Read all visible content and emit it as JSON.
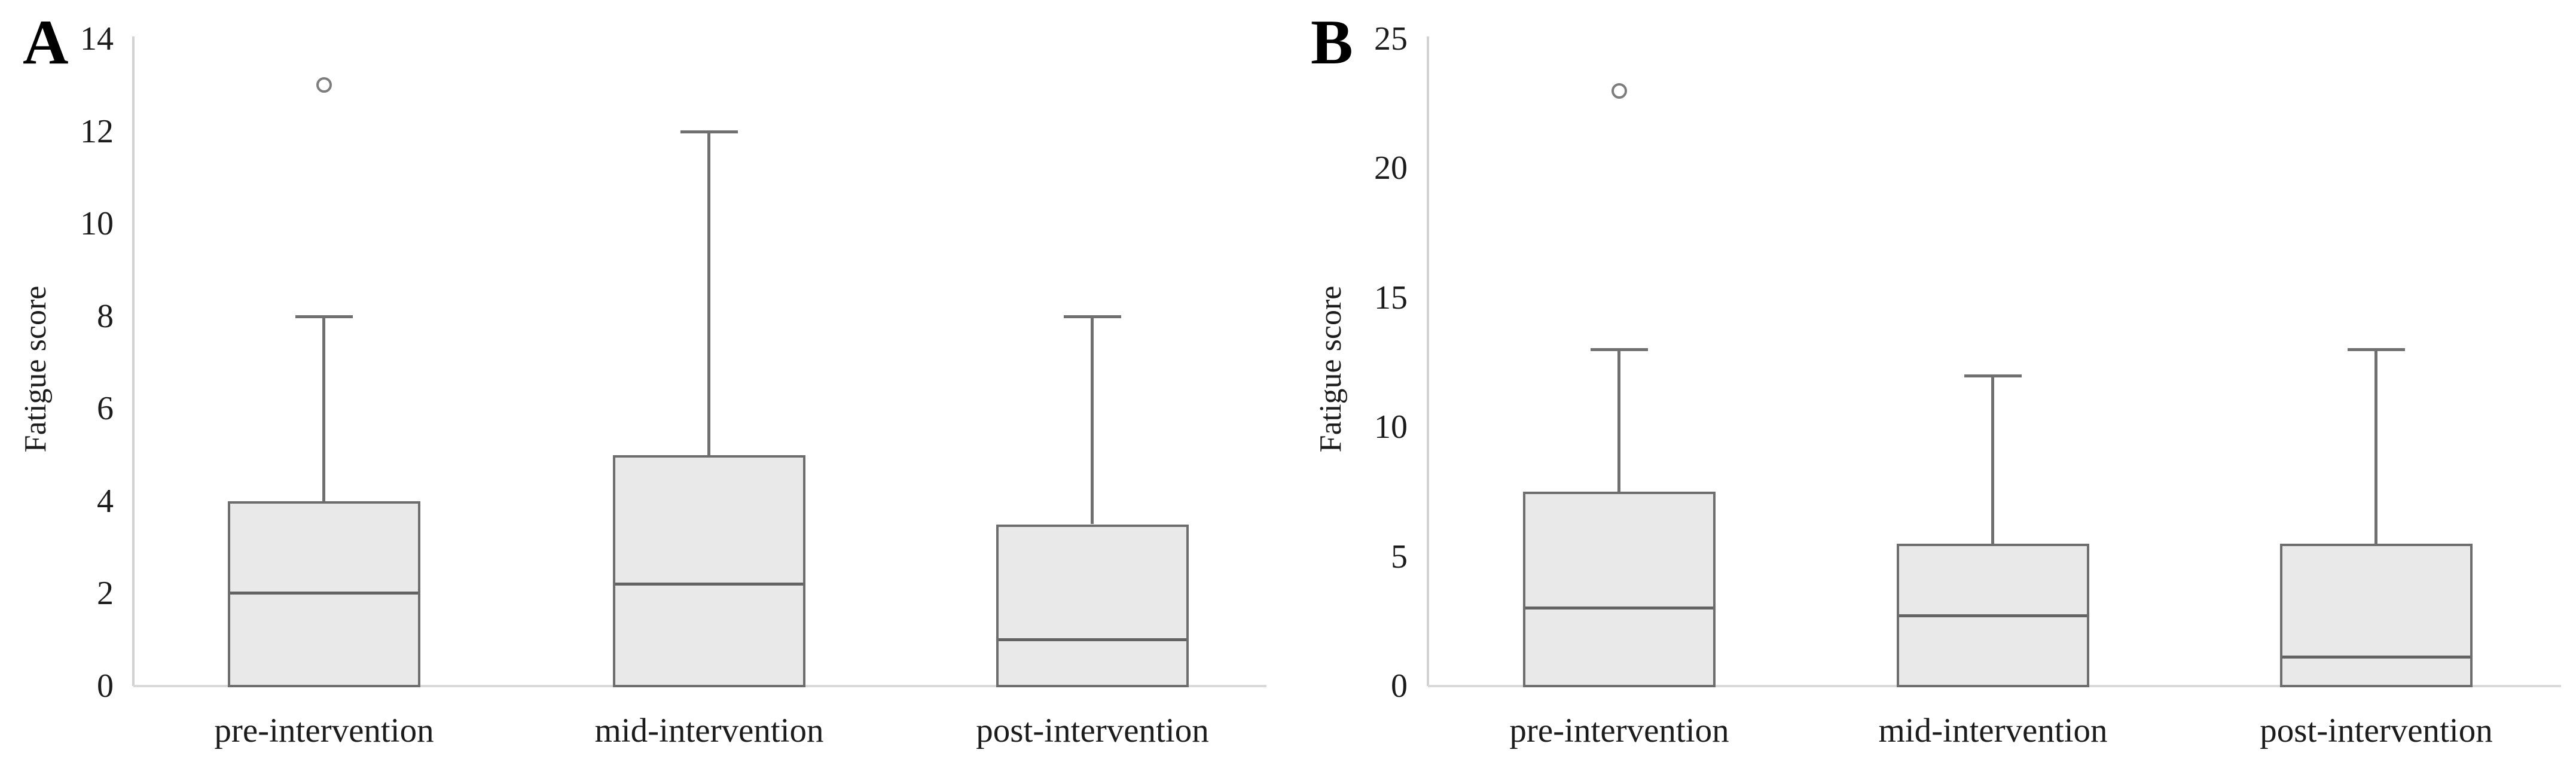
{
  "figure": {
    "background": "#ffffff"
  },
  "colors": {
    "box_fill": "#e9e9e9",
    "box_border": "#6d6d6d",
    "median": "#636363",
    "whisker": "#707070",
    "axis_line": "#d2d2d2",
    "baseline": "#d9d9d9",
    "outlier_stroke": "#7d7d7d",
    "text": "#1c1c1c",
    "panel_letter": "#000000"
  },
  "chart_data": [
    {
      "type": "box",
      "panel_label": "A",
      "title": "",
      "xlabel": "",
      "ylabel": "Fatigue score",
      "ylim": [
        0,
        14
      ],
      "yticks": [
        0,
        2,
        4,
        6,
        8,
        10,
        12,
        14
      ],
      "grid": false,
      "legend": null,
      "categories": [
        "pre-intervention",
        "mid-intervention",
        "post-intervention"
      ],
      "boxes": [
        {
          "category": "pre-intervention",
          "whisker_low": 0,
          "q1": 0,
          "median": 2,
          "q3": 4,
          "whisker_high": 8,
          "outliers": [
            13
          ]
        },
        {
          "category": "mid-intervention",
          "whisker_low": 0,
          "q1": 0,
          "median": 2.2,
          "q3": 5,
          "whisker_high": 12,
          "outliers": []
        },
        {
          "category": "post-intervention",
          "whisker_low": 0,
          "q1": 0,
          "median": 1,
          "q3": 3.5,
          "whisker_high": 8,
          "outliers": []
        }
      ]
    },
    {
      "type": "box",
      "panel_label": "B",
      "title": "",
      "xlabel": "",
      "ylabel": "Fatigue score",
      "ylim": [
        0,
        25
      ],
      "yticks": [
        0,
        5,
        10,
        15,
        20,
        25
      ],
      "grid": false,
      "legend": null,
      "categories": [
        "pre-intervention",
        "mid-intervention",
        "post-intervention"
      ],
      "boxes": [
        {
          "category": "pre-intervention",
          "whisker_low": 0,
          "q1": 0,
          "median": 3,
          "q3": 7.5,
          "whisker_high": 13,
          "outliers": [
            23
          ]
        },
        {
          "category": "mid-intervention",
          "whisker_low": 0,
          "q1": 0,
          "median": 2.7,
          "q3": 5.5,
          "whisker_high": 12,
          "outliers": []
        },
        {
          "category": "post-intervention",
          "whisker_low": 0,
          "q1": 0,
          "median": 1.1,
          "q3": 5.5,
          "whisker_high": 13,
          "outliers": []
        }
      ]
    }
  ]
}
